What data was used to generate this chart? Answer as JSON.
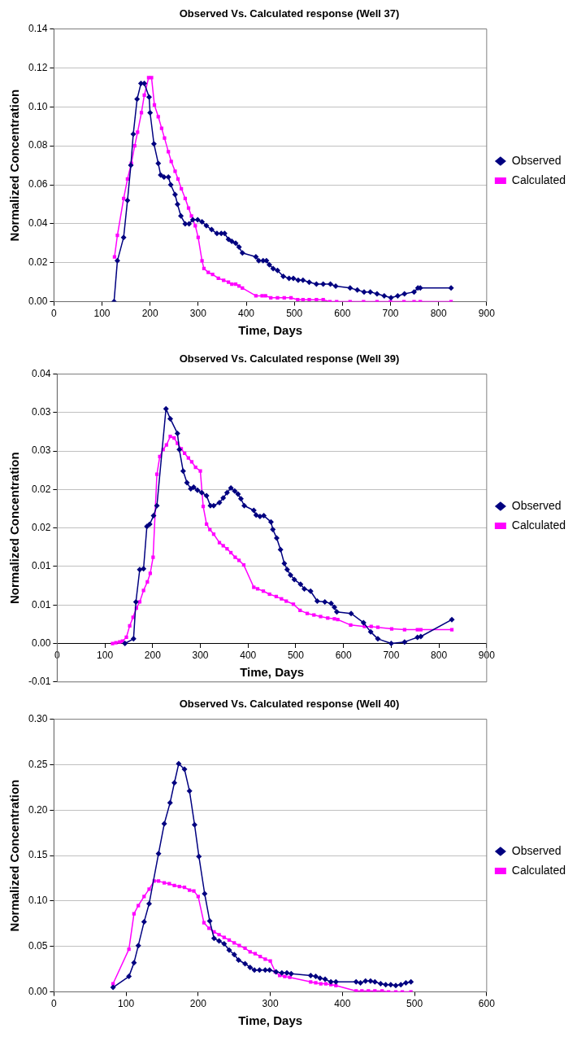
{
  "chart_data": [
    {
      "type": "line",
      "title": "Observed Vs. Calculated response (Well 37)",
      "xlabel": "Time, Days",
      "ylabel": "Normalized Concentration",
      "xlim": [
        0,
        900
      ],
      "xticks": [
        0,
        100,
        200,
        300,
        400,
        500,
        600,
        700,
        800,
        900
      ],
      "ylim": [
        0,
        0.14
      ],
      "yticks": [
        {
          "value": 0,
          "label": "0.00"
        },
        {
          "value": 0.02,
          "label": "0.02"
        },
        {
          "value": 0.04,
          "label": "0.04"
        },
        {
          "value": 0.06,
          "label": "0.06"
        },
        {
          "value": 0.08,
          "label": "0.08"
        },
        {
          "value": 0.1,
          "label": "0.10"
        },
        {
          "value": 0.12,
          "label": "0.12"
        },
        {
          "value": 0.14,
          "label": "0.14"
        }
      ],
      "grid": "y",
      "legend": "right",
      "series": [
        {
          "name": "Observed",
          "color": "#000080",
          "marker": "diamond",
          "x": [
            125,
            132,
            145,
            153,
            160,
            165,
            173,
            181,
            188,
            198,
            200,
            208,
            217,
            222,
            229,
            238,
            243,
            252,
            257,
            264,
            273,
            281,
            289,
            299,
            308,
            317,
            328,
            339,
            348,
            355,
            363,
            370,
            378,
            385,
            392,
            420,
            426,
            435,
            442,
            448,
            456,
            465,
            477,
            489,
            498,
            508,
            518,
            531,
            546,
            560,
            575,
            586,
            616,
            631,
            645,
            658,
            672,
            687,
            701,
            715,
            729,
            749,
            757,
            762,
            826
          ],
          "values": [
            0,
            0.021,
            0.033,
            0.052,
            0.07,
            0.086,
            0.104,
            0.112,
            0.112,
            0.105,
            0.097,
            0.081,
            0.071,
            0.065,
            0.064,
            0.064,
            0.06,
            0.055,
            0.05,
            0.044,
            0.04,
            0.04,
            0.042,
            0.042,
            0.041,
            0.039,
            0.037,
            0.035,
            0.035,
            0.035,
            0.032,
            0.031,
            0.03,
            0.028,
            0.025,
            0.023,
            0.021,
            0.021,
            0.021,
            0.019,
            0.017,
            0.016,
            0.013,
            0.012,
            0.012,
            0.011,
            0.011,
            0.01,
            0.009,
            0.009,
            0.009,
            0.008,
            0.007,
            0.006,
            0.005,
            0.005,
            0.004,
            0.003,
            0.002,
            0.003,
            0.004,
            0.005,
            0.007,
            0.007,
            0.007
          ]
        },
        {
          "name": "Calculated",
          "color": "#ff00ff",
          "marker": "square",
          "x": [
            126,
            132,
            145,
            153,
            161,
            168,
            174,
            182,
            188,
            197,
            203,
            209,
            217,
            224,
            230,
            238,
            244,
            252,
            258,
            265,
            273,
            280,
            286,
            294,
            300,
            308,
            312,
            321,
            330,
            342,
            353,
            363,
            370,
            378,
            385,
            392,
            420,
            433,
            440,
            451,
            465,
            479,
            493,
            507,
            518,
            531,
            546,
            560,
            574,
            588,
            616,
            644,
            672,
            700,
            728,
            749,
            762,
            826
          ],
          "values": [
            0.023,
            0.034,
            0.053,
            0.063,
            0.071,
            0.08,
            0.087,
            0.097,
            0.106,
            0.115,
            0.115,
            0.101,
            0.095,
            0.089,
            0.084,
            0.077,
            0.072,
            0.067,
            0.063,
            0.058,
            0.053,
            0.048,
            0.044,
            0.039,
            0.033,
            0.021,
            0.017,
            0.015,
            0.014,
            0.012,
            0.011,
            0.01,
            0.009,
            0.009,
            0.008,
            0.007,
            0.003,
            0.003,
            0.003,
            0.002,
            0.002,
            0.002,
            0.002,
            0.001,
            0.001,
            0.001,
            0.001,
            0.001,
            0,
            0,
            0,
            0,
            0,
            0,
            0,
            0,
            0,
            0
          ]
        }
      ]
    },
    {
      "type": "line",
      "title": "Observed Vs. Calculated response (Well 39)",
      "xlabel": "Time, Days",
      "ylabel": "Normalized Concentration",
      "xlim": [
        0,
        900
      ],
      "xticks": [
        0,
        100,
        200,
        300,
        400,
        500,
        600,
        700,
        800,
        900
      ],
      "ylim": [
        -0.005,
        0.035
      ],
      "yticks": [
        {
          "value": -0.005,
          "label": "-0.01"
        },
        {
          "value": 0,
          "label": "0.00"
        },
        {
          "value": 0.005,
          "label": "0.01"
        },
        {
          "value": 0.01,
          "label": "0.01"
        },
        {
          "value": 0.015,
          "label": "0.02"
        },
        {
          "value": 0.02,
          "label": "0.02"
        },
        {
          "value": 0.025,
          "label": "0.03"
        },
        {
          "value": 0.03,
          "label": "0.03"
        },
        {
          "value": 0.035,
          "label": "0.04"
        }
      ],
      "grid": "y",
      "legend": "right",
      "series": [
        {
          "name": "Observed",
          "color": "#000080",
          "marker": "diamond",
          "x": [
            142,
            160,
            165,
            173,
            181,
            188,
            194,
            202,
            209,
            228,
            237,
            252,
            256,
            264,
            272,
            280,
            286,
            294,
            303,
            313,
            321,
            328,
            340,
            348,
            356,
            364,
            372,
            379,
            385,
            392,
            412,
            417,
            425,
            433,
            448,
            452,
            460,
            468,
            476,
            482,
            489,
            497,
            510,
            518,
            531,
            545,
            561,
            574,
            581,
            586,
            616,
            642,
            657,
            672,
            700,
            728,
            755,
            762,
            827
          ],
          "values": [
            0,
            0.0006,
            0.0054,
            0.0096,
            0.0097,
            0.0152,
            0.0155,
            0.0166,
            0.0179,
            0.0305,
            0.0292,
            0.0273,
            0.0252,
            0.0224,
            0.0209,
            0.0201,
            0.0203,
            0.0199,
            0.0196,
            0.0192,
            0.0179,
            0.0179,
            0.0183,
            0.0189,
            0.0196,
            0.0202,
            0.0198,
            0.0194,
            0.0188,
            0.0179,
            0.0173,
            0.0167,
            0.0165,
            0.0166,
            0.0158,
            0.0148,
            0.0137,
            0.0122,
            0.0104,
            0.0096,
            0.0089,
            0.0083,
            0.0077,
            0.0071,
            0.0068,
            0.0055,
            0.0054,
            0.0052,
            0.0047,
            0.0041,
            0.0039,
            0.0027,
            0.0015,
            0.0006,
            0,
            0.0002,
            0.0008,
            0.0009,
            0.0031
          ]
        },
        {
          "name": "Calculated",
          "color": "#ff00ff",
          "marker": "square",
          "x": [
            116,
            123,
            131,
            137,
            145,
            152,
            159,
            166,
            173,
            181,
            189,
            195,
            201,
            209,
            215,
            222,
            229,
            237,
            245,
            252,
            260,
            267,
            275,
            282,
            290,
            300,
            306,
            313,
            320,
            328,
            340,
            348,
            356,
            364,
            373,
            381,
            391,
            412,
            420,
            432,
            445,
            459,
            470,
            480,
            495,
            509,
            524,
            538,
            552,
            567,
            581,
            588,
            615,
            644,
            658,
            672,
            701,
            728,
            755,
            762,
            827
          ],
          "values": [
            0,
            0.0001,
            0.0002,
            0.0003,
            0.0008,
            0.0023,
            0.0034,
            0.0046,
            0.0054,
            0.0069,
            0.008,
            0.0091,
            0.0112,
            0.022,
            0.0243,
            0.0252,
            0.0258,
            0.0269,
            0.0267,
            0.026,
            0.0253,
            0.0247,
            0.0241,
            0.0236,
            0.0229,
            0.0224,
            0.0178,
            0.0155,
            0.0148,
            0.0142,
            0.0131,
            0.0127,
            0.0123,
            0.0118,
            0.0112,
            0.0108,
            0.0102,
            0.0073,
            0.0071,
            0.0068,
            0.0064,
            0.0061,
            0.0058,
            0.0055,
            0.0051,
            0.0043,
            0.0039,
            0.0037,
            0.0035,
            0.0033,
            0.0032,
            0.0031,
            0.0024,
            0.0022,
            0.0022,
            0.0021,
            0.0019,
            0.0018,
            0.0018,
            0.0018,
            0.0018
          ]
        }
      ]
    },
    {
      "type": "line",
      "title": "Observed Vs. Calculated response (Well 40)",
      "xlabel": "Time, Days",
      "ylabel": "Normalized Concentration",
      "xlim": [
        0,
        600
      ],
      "xticks": [
        0,
        100,
        200,
        300,
        400,
        500,
        600
      ],
      "ylim": [
        0,
        0.3
      ],
      "yticks": [
        {
          "value": 0,
          "label": "0.00"
        },
        {
          "value": 0.05,
          "label": "0.05"
        },
        {
          "value": 0.1,
          "label": "0.10"
        },
        {
          "value": 0.15,
          "label": "0.15"
        },
        {
          "value": 0.2,
          "label": "0.20"
        },
        {
          "value": 0.25,
          "label": "0.25"
        },
        {
          "value": 0.3,
          "label": "0.30"
        }
      ],
      "grid": "y",
      "legend": "right",
      "series": [
        {
          "name": "Observed",
          "color": "#000080",
          "marker": "diamond",
          "x": [
            82,
            104,
            111,
            117,
            125,
            132,
            145,
            153,
            161,
            167,
            173,
            181,
            188,
            195,
            201,
            209,
            216,
            222,
            229,
            236,
            243,
            250,
            256,
            265,
            272,
            278,
            285,
            293,
            299,
            308,
            316,
            323,
            329,
            356,
            363,
            369,
            376,
            384,
            391,
            419,
            425,
            432,
            439,
            445,
            453,
            460,
            467,
            474,
            481,
            488,
            495
          ],
          "values": [
            0.005,
            0.017,
            0.032,
            0.051,
            0.077,
            0.097,
            0.152,
            0.185,
            0.208,
            0.23,
            0.251,
            0.245,
            0.221,
            0.184,
            0.149,
            0.108,
            0.078,
            0.059,
            0.056,
            0.053,
            0.046,
            0.041,
            0.035,
            0.031,
            0.027,
            0.024,
            0.024,
            0.024,
            0.024,
            0.022,
            0.021,
            0.021,
            0.02,
            0.018,
            0.017,
            0.015,
            0.014,
            0.011,
            0.011,
            0.011,
            0.01,
            0.012,
            0.012,
            0.011,
            0.009,
            0.008,
            0.008,
            0.007,
            0.008,
            0.01,
            0.011
          ]
        },
        {
          "name": "Calculated",
          "color": "#ff00ff",
          "marker": "square",
          "x": [
            82,
            104,
            111,
            117,
            125,
            132,
            139,
            145,
            153,
            160,
            167,
            174,
            181,
            188,
            194,
            200,
            208,
            215,
            222,
            229,
            236,
            243,
            250,
            257,
            265,
            272,
            279,
            286,
            293,
            300,
            307,
            313,
            320,
            327,
            356,
            363,
            370,
            377,
            384,
            391,
            419,
            427,
            436,
            445,
            455,
            464,
            474,
            483,
            495
          ],
          "values": [
            0.009,
            0.047,
            0.086,
            0.095,
            0.105,
            0.113,
            0.122,
            0.122,
            0.12,
            0.119,
            0.117,
            0.116,
            0.115,
            0.112,
            0.111,
            0.105,
            0.076,
            0.07,
            0.066,
            0.063,
            0.06,
            0.057,
            0.054,
            0.051,
            0.048,
            0.044,
            0.042,
            0.039,
            0.036,
            0.034,
            0.022,
            0.018,
            0.017,
            0.016,
            0.011,
            0.01,
            0.009,
            0.009,
            0.008,
            0.007,
            0.001,
            0.001,
            0.001,
            0.001,
            0.001,
            0,
            0,
            0,
            0
          ]
        }
      ]
    }
  ]
}
